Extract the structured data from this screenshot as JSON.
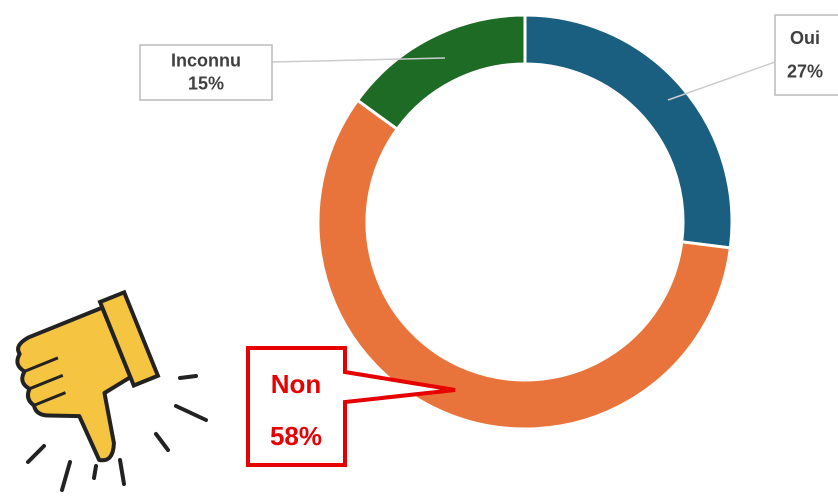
{
  "chart_data": {
    "type": "donut",
    "categories": [
      "Oui",
      "Non",
      "Inconnu"
    ],
    "values": [
      27,
      58,
      15
    ],
    "value_labels": [
      "27%",
      "58%",
      "15%"
    ],
    "colors": [
      "#1a5f80",
      "#e8743b",
      "#1e6b25"
    ]
  }
}
